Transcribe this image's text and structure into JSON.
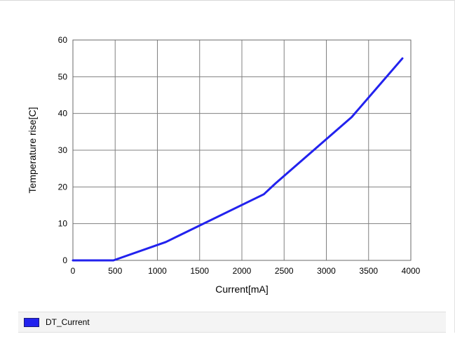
{
  "chart_data": {
    "type": "line",
    "xlabel": "Current[mA]",
    "ylabel": "Temperature rise[C]",
    "xlim": [
      0,
      4000
    ],
    "ylim": [
      0,
      60
    ],
    "x_ticks": [
      0,
      500,
      1000,
      1500,
      2000,
      2500,
      3000,
      3500,
      4000
    ],
    "y_ticks": [
      0,
      10,
      20,
      30,
      40,
      50,
      60
    ],
    "grid": true,
    "legend_position": "bottom",
    "series": [
      {
        "name": "DT_Current",
        "color": "#2222ee",
        "x": [
          0,
          480,
          1100,
          2260,
          2400,
          3300,
          3900
        ],
        "y": [
          0,
          0,
          5,
          18,
          21,
          39,
          55
        ]
      }
    ]
  },
  "legend": {
    "label": "DT_Current",
    "swatch_color": "#2222ee"
  }
}
